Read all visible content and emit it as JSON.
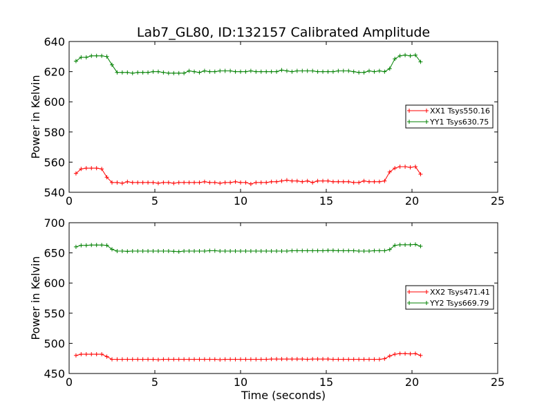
{
  "chart_data": [
    {
      "type": "line",
      "title": "Lab7_GL80, ID:132157 Calibrated Amplitude",
      "xlabel": "",
      "ylabel": "Power in Kelvin",
      "xlim": [
        0,
        25
      ],
      "ylim": [
        540,
        640
      ],
      "xticks": [
        "0",
        "5",
        "10",
        "15",
        "20",
        "25"
      ],
      "yticks": [
        "540",
        "560",
        "580",
        "600",
        "620",
        "640"
      ],
      "legend_position": "right",
      "x": [
        0.4,
        0.7,
        1.0,
        1.3,
        1.6,
        1.9,
        2.2,
        2.5,
        2.8,
        3.1,
        3.4,
        3.7,
        4.0,
        4.3,
        4.6,
        4.9,
        5.2,
        5.5,
        5.8,
        6.1,
        6.4,
        6.7,
        7.0,
        7.3,
        7.6,
        7.9,
        8.2,
        8.5,
        8.8,
        9.1,
        9.4,
        9.7,
        10.0,
        10.3,
        10.6,
        10.9,
        11.2,
        11.5,
        11.8,
        12.1,
        12.4,
        12.7,
        13.0,
        13.3,
        13.6,
        13.9,
        14.2,
        14.5,
        14.8,
        15.1,
        15.4,
        15.7,
        16.0,
        16.3,
        16.6,
        16.9,
        17.2,
        17.5,
        17.8,
        18.1,
        18.4,
        18.7,
        19.0,
        19.3,
        19.6,
        19.9,
        20.2,
        20.5
      ],
      "series": [
        {
          "name": "XX1 Tsys550.16",
          "color": "#ff0000",
          "values": [
            552.5,
            555.5,
            556,
            556,
            556,
            555.5,
            550,
            546.5,
            546.5,
            546,
            547,
            546.5,
            546.5,
            546.5,
            546.5,
            546.5,
            546,
            546.5,
            546.5,
            546,
            546.5,
            546.5,
            546.5,
            546.5,
            546.5,
            547,
            546.5,
            546.5,
            546,
            546.5,
            546.5,
            547,
            546.5,
            546.5,
            545.5,
            546.5,
            546.5,
            546.5,
            547,
            547,
            547.5,
            548,
            547.5,
            547.5,
            547,
            547.5,
            546.5,
            547.5,
            547.5,
            547.5,
            547,
            547,
            547,
            547,
            546.5,
            546.5,
            547.5,
            547,
            547,
            547,
            547.5,
            553.5,
            556,
            557,
            557,
            556.5,
            557,
            552
          ]
        },
        {
          "name": "YY1 Tsys630.75",
          "color": "#008000",
          "values": [
            627,
            629.5,
            629.5,
            630.5,
            630.5,
            630.5,
            630,
            624.5,
            619.5,
            619.5,
            619.5,
            619,
            619.5,
            619.5,
            619.5,
            620,
            620,
            619.5,
            619,
            619,
            619,
            619,
            620.5,
            620,
            619.5,
            620.5,
            620,
            620,
            620.5,
            620.5,
            620.5,
            620,
            620,
            620,
            620.5,
            620,
            620,
            620,
            620,
            620,
            621,
            620.5,
            620,
            620.5,
            620.5,
            620.5,
            620.5,
            620,
            620,
            620,
            620,
            620.5,
            620.5,
            620.5,
            620,
            619.5,
            619.5,
            620.5,
            620,
            620.5,
            620,
            622,
            628.5,
            630.5,
            631,
            630.5,
            631,
            626.5
          ]
        }
      ]
    },
    {
      "type": "line",
      "title": "",
      "xlabel": "Time (seconds)",
      "ylabel": "Power in Kelvin",
      "xlim": [
        0,
        25
      ],
      "ylim": [
        450,
        700
      ],
      "xticks": [
        "0",
        "5",
        "10",
        "15",
        "20",
        "25"
      ],
      "yticks": [
        "450",
        "500",
        "550",
        "600",
        "650",
        "700"
      ],
      "legend_position": "right",
      "x": [
        0.4,
        0.7,
        1.0,
        1.3,
        1.6,
        1.9,
        2.2,
        2.5,
        2.8,
        3.1,
        3.4,
        3.7,
        4.0,
        4.3,
        4.6,
        4.9,
        5.2,
        5.5,
        5.8,
        6.1,
        6.4,
        6.7,
        7.0,
        7.3,
        7.6,
        7.9,
        8.2,
        8.5,
        8.8,
        9.1,
        9.4,
        9.7,
        10.0,
        10.3,
        10.6,
        10.9,
        11.2,
        11.5,
        11.8,
        12.1,
        12.4,
        12.7,
        13.0,
        13.3,
        13.6,
        13.9,
        14.2,
        14.5,
        14.8,
        15.1,
        15.4,
        15.7,
        16.0,
        16.3,
        16.6,
        16.9,
        17.2,
        17.5,
        17.8,
        18.1,
        18.4,
        18.7,
        19.0,
        19.3,
        19.6,
        19.9,
        20.2,
        20.5
      ],
      "series": [
        {
          "name": "XX2 Tsys471.41",
          "color": "#ff0000",
          "values": [
            480,
            482,
            482,
            482,
            482,
            482,
            478,
            473.5,
            473.5,
            473.5,
            473.5,
            473.5,
            473.5,
            473.5,
            473.5,
            473.5,
            473,
            473.5,
            473.5,
            473.5,
            473.5,
            473.5,
            473.5,
            473.5,
            473.5,
            473.5,
            473.5,
            473.5,
            473,
            473.5,
            473.5,
            473.5,
            473.5,
            473.5,
            473.5,
            473.5,
            473.5,
            473.5,
            474,
            474,
            474,
            474,
            474,
            474,
            474,
            473.5,
            474,
            474,
            474,
            474,
            473.5,
            473.5,
            473.5,
            473.5,
            473.5,
            473.5,
            473.5,
            473.5,
            473.5,
            473.5,
            474.5,
            479,
            482,
            483,
            483,
            482.5,
            483,
            480
          ]
        },
        {
          "name": "YY2 Tsys669.79",
          "color": "#008000",
          "values": [
            660,
            662.5,
            662.5,
            663,
            663,
            663,
            662.5,
            656,
            653,
            653,
            652.5,
            653,
            653,
            653,
            653,
            653,
            653,
            653,
            653,
            652.5,
            652,
            653,
            653,
            653,
            653,
            653,
            653.5,
            653.5,
            653,
            653,
            653,
            653,
            653,
            653,
            653,
            653,
            653,
            653,
            653,
            653,
            653,
            653,
            653.5,
            653.5,
            653.5,
            653.5,
            653.5,
            653.5,
            653.5,
            654,
            654,
            653.5,
            653.5,
            653.5,
            653.5,
            653,
            653,
            653,
            653.5,
            653.5,
            653.5,
            655.5,
            662.5,
            663.5,
            663.5,
            663.5,
            664,
            661
          ]
        }
      ]
    }
  ]
}
